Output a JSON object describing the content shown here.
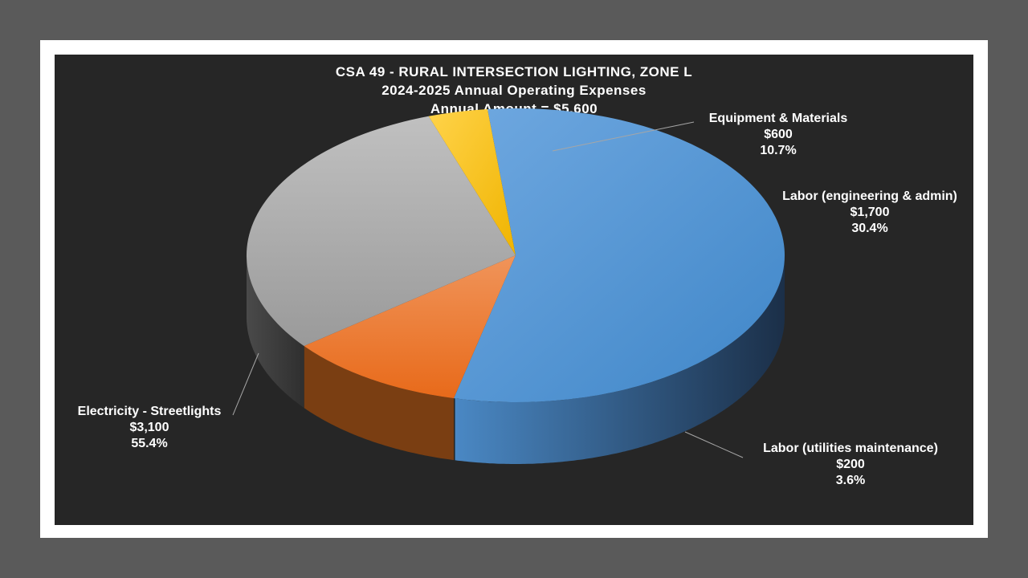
{
  "chart_data": {
    "type": "pie",
    "title": "CSA 49 - RURAL INTERSECTION LIGHTING, ZONE L",
    "subtitle": "2024-2025 Annual Operating Expenses",
    "subtitle2": "Annual Amount = $5,600",
    "total": 5600,
    "slices": [
      {
        "name": "Electricity - Streetlights",
        "value": 3100,
        "value_label": "$3,100",
        "percent_label": "55.4%",
        "color": "#5b9bd5"
      },
      {
        "name": "Equipment & Materials",
        "value": 600,
        "value_label": "$600",
        "percent_label": "10.7%",
        "color": "#ed7d31"
      },
      {
        "name": "Labor (engineering & admin)",
        "value": 1700,
        "value_label": "$1,700",
        "percent_label": "30.4%",
        "color": "#a5a5a5"
      },
      {
        "name": "Labor (utilities maintenance)",
        "value": 200,
        "value_label": "$200",
        "percent_label": "3.6%",
        "color": "#ffc000"
      }
    ],
    "style": "3d",
    "background": "#262626",
    "frame_color": "#ffffff",
    "outer_background": "#5a5a5a"
  }
}
